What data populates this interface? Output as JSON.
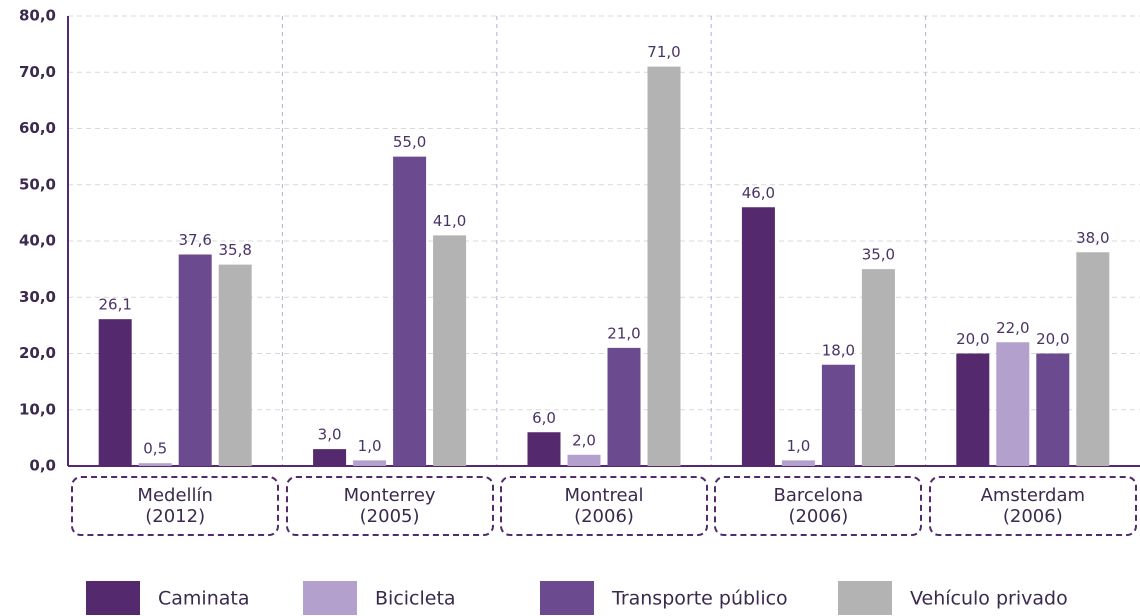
{
  "chart_data": {
    "type": "bar",
    "categories": [
      "Medellín\n(2012)",
      "Monterrey\n(2005)",
      "Montreal\n(2006)",
      "Barcelona\n(2006)",
      "Amsterdam\n(2006)"
    ],
    "series": [
      {
        "name": "Caminata",
        "color": "#54296e",
        "values": [
          26.1,
          3.0,
          6.0,
          46.0,
          20.0
        ],
        "value_labels": [
          "26,1",
          "3,0",
          "6,0",
          "46,0",
          "20,0"
        ]
      },
      {
        "name": "Bicicleta",
        "color": "#b3a0cc",
        "values": [
          0.5,
          1.0,
          2.0,
          1.0,
          22.0
        ],
        "value_labels": [
          "0,5",
          "1,0",
          "2,0",
          "1,0",
          "22,0"
        ]
      },
      {
        "name": "Transporte público",
        "color": "#6b4a90",
        "values": [
          37.6,
          55.0,
          21.0,
          18.0,
          20.0
        ],
        "value_labels": [
          "37,6",
          "55,0",
          "21,0",
          "18,0",
          "20,0"
        ]
      },
      {
        "name": "Vehículo privado",
        "color": "#b3b3b3",
        "values": [
          35.8,
          41.0,
          71.0,
          35.0,
          38.0
        ],
        "value_labels": [
          "35,8",
          "41,0",
          "71,0",
          "35,0",
          "38,0"
        ]
      }
    ],
    "ylim": [
      0,
      80
    ],
    "yticks": [
      {
        "value": 0,
        "label": "0,0"
      },
      {
        "value": 10,
        "label": "10,0"
      },
      {
        "value": 20,
        "label": "20,0"
      },
      {
        "value": 30,
        "label": "30,0"
      },
      {
        "value": 40,
        "label": "40,0"
      },
      {
        "value": 50,
        "label": "50,0"
      },
      {
        "value": 60,
        "label": "60,0"
      },
      {
        "value": 70,
        "label": "70,0"
      },
      {
        "value": 80,
        "label": "80,0"
      }
    ],
    "grid": true
  }
}
